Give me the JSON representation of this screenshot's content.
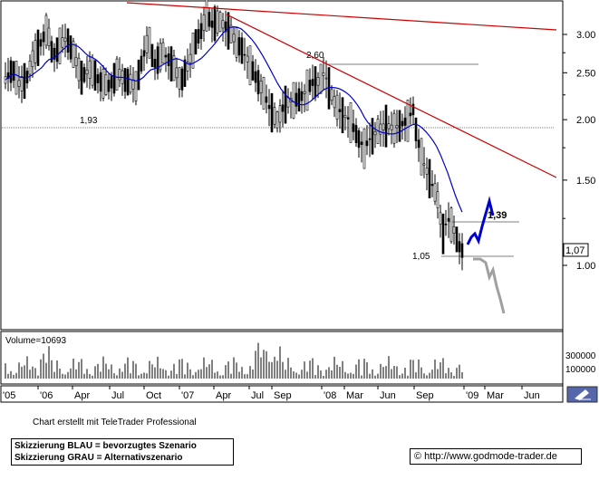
{
  "chart_data": {
    "type": "candlestick",
    "price_axis": {
      "scale": "log",
      "ticks": [
        3.0,
        2.5,
        2.0,
        1.5,
        1.0
      ],
      "tick_labels": [
        "3.00",
        "2.50",
        "2.00",
        "1.50",
        "1.00"
      ]
    },
    "last_price_label": "1,07",
    "time_axis_labels": [
      "'05",
      "'06",
      "Apr",
      "Jul",
      "Oct",
      "'07",
      "Apr",
      "Jul",
      "Sep",
      "'08",
      "Mar",
      "Jun",
      "Sep",
      "'09",
      "Mar",
      "Jun"
    ],
    "annotations": {
      "level_193": "1,93",
      "level_260": "2,60",
      "level_105": "1,05",
      "target_139": "1,39"
    },
    "volume": {
      "label": "Volume=10693",
      "tick_labels": [
        "300000",
        "100000"
      ]
    },
    "series_colors": {
      "price": "#000000",
      "moving_average": "#0000cc",
      "trendline": "#cc0000",
      "preferred_scenario": "#0000cc",
      "alternative_scenario": "#a0a0a0",
      "horizontal_levels": "#808080"
    }
  },
  "footer": {
    "credit": "Chart erstellt mit TeleTrader Professional",
    "legend_blue": "Skizzierung BLAU = bevorzugtes Szenario",
    "legend_grey": "Skizzierung GRAU = Alternativszenario",
    "copyright_symbol": "©",
    "url": "http://www.godmode-trader.de"
  }
}
